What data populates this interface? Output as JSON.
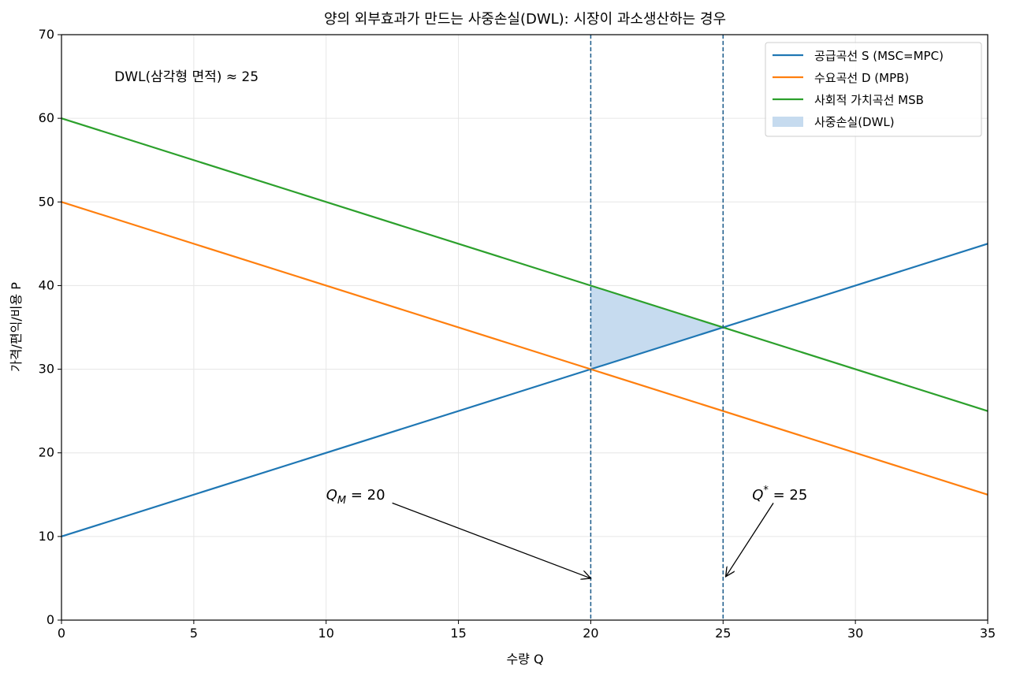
{
  "chart_data": {
    "type": "line",
    "title": "양의 외부효과가 만드는 사중손실(DWL): 시장이 과소생산하는 경우",
    "xlabel": "수량 Q",
    "ylabel": "가격/편익/비용 P",
    "xlim": [
      0,
      35
    ],
    "ylim": [
      0,
      70
    ],
    "xticks": [
      0,
      5,
      10,
      15,
      20,
      25,
      30,
      35
    ],
    "yticks": [
      0,
      10,
      20,
      30,
      40,
      50,
      60,
      70
    ],
    "grid": true,
    "legend_position": "top-right",
    "series": [
      {
        "name": "공급곡선 S (MSC=MPC)",
        "color": "#1f77b4",
        "x": [
          0,
          35
        ],
        "y": [
          10,
          45
        ]
      },
      {
        "name": "수요곡선 D (MPB)",
        "color": "#ff7f0e",
        "x": [
          0,
          35
        ],
        "y": [
          50,
          15
        ]
      },
      {
        "name": "사회적 가치곡선 MSB",
        "color": "#2ca02c",
        "x": [
          0,
          35
        ],
        "y": [
          60,
          25
        ]
      }
    ],
    "dwl_region": {
      "name": "사중손실(DWL)",
      "color": "#c6dbef",
      "points": [
        [
          20,
          30
        ],
        [
          20,
          40
        ],
        [
          25,
          35
        ]
      ]
    },
    "vlines": [
      {
        "x": 20,
        "color": "#1a5a8a"
      },
      {
        "x": 25,
        "color": "#1a5a8a"
      }
    ],
    "annotations": [
      {
        "id": "qm",
        "main": "Q",
        "sub": "M",
        "rest": " = 20",
        "text_x": 10,
        "text_y": 15,
        "arrow_from": [
          12.5,
          14
        ],
        "arrow_to": [
          20,
          5
        ]
      },
      {
        "id": "qstar",
        "main": "Q",
        "sup": "*",
        "rest": " = 25",
        "text_x": 26.1,
        "text_y": 15,
        "arrow_from": [
          26.9,
          14
        ],
        "arrow_to": [
          25.1,
          5.2
        ]
      }
    ],
    "dwl_text": "DWL(삼각형 면적) ≈ 25",
    "dwl_text_pos": [
      2,
      65
    ]
  }
}
